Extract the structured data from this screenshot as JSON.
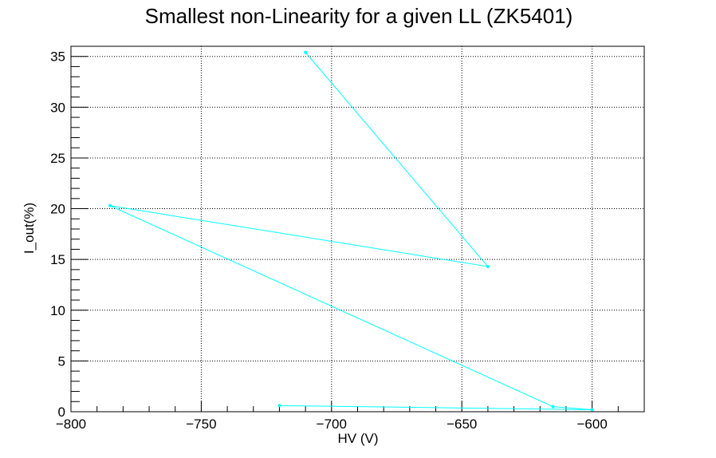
{
  "chart_data": {
    "type": "line",
    "title": "Smallest non-Linearity for a given LL (ZK5401)",
    "xlabel": "HV (V)",
    "ylabel": "I_out(%)",
    "xlim": [
      -800,
      -580
    ],
    "ylim": [
      0,
      36
    ],
    "grid": true,
    "line_color": "#00ffff",
    "x_ticks": [
      -800,
      -750,
      -700,
      -650,
      -600
    ],
    "x_tick_labels": [
      "−800",
      "−750",
      "−700",
      "−650",
      "−600"
    ],
    "y_ticks": [
      0,
      5,
      10,
      15,
      20,
      25,
      30,
      35
    ],
    "y_tick_labels": [
      "0",
      "5",
      "10",
      "15",
      "20",
      "25",
      "30",
      "35"
    ],
    "series": [
      {
        "x": [
          -710,
          -640,
          -785,
          -615,
          -600,
          -720
        ],
        "y": [
          35.4,
          14.3,
          20.3,
          0.5,
          0.2,
          0.6
        ]
      }
    ]
  }
}
